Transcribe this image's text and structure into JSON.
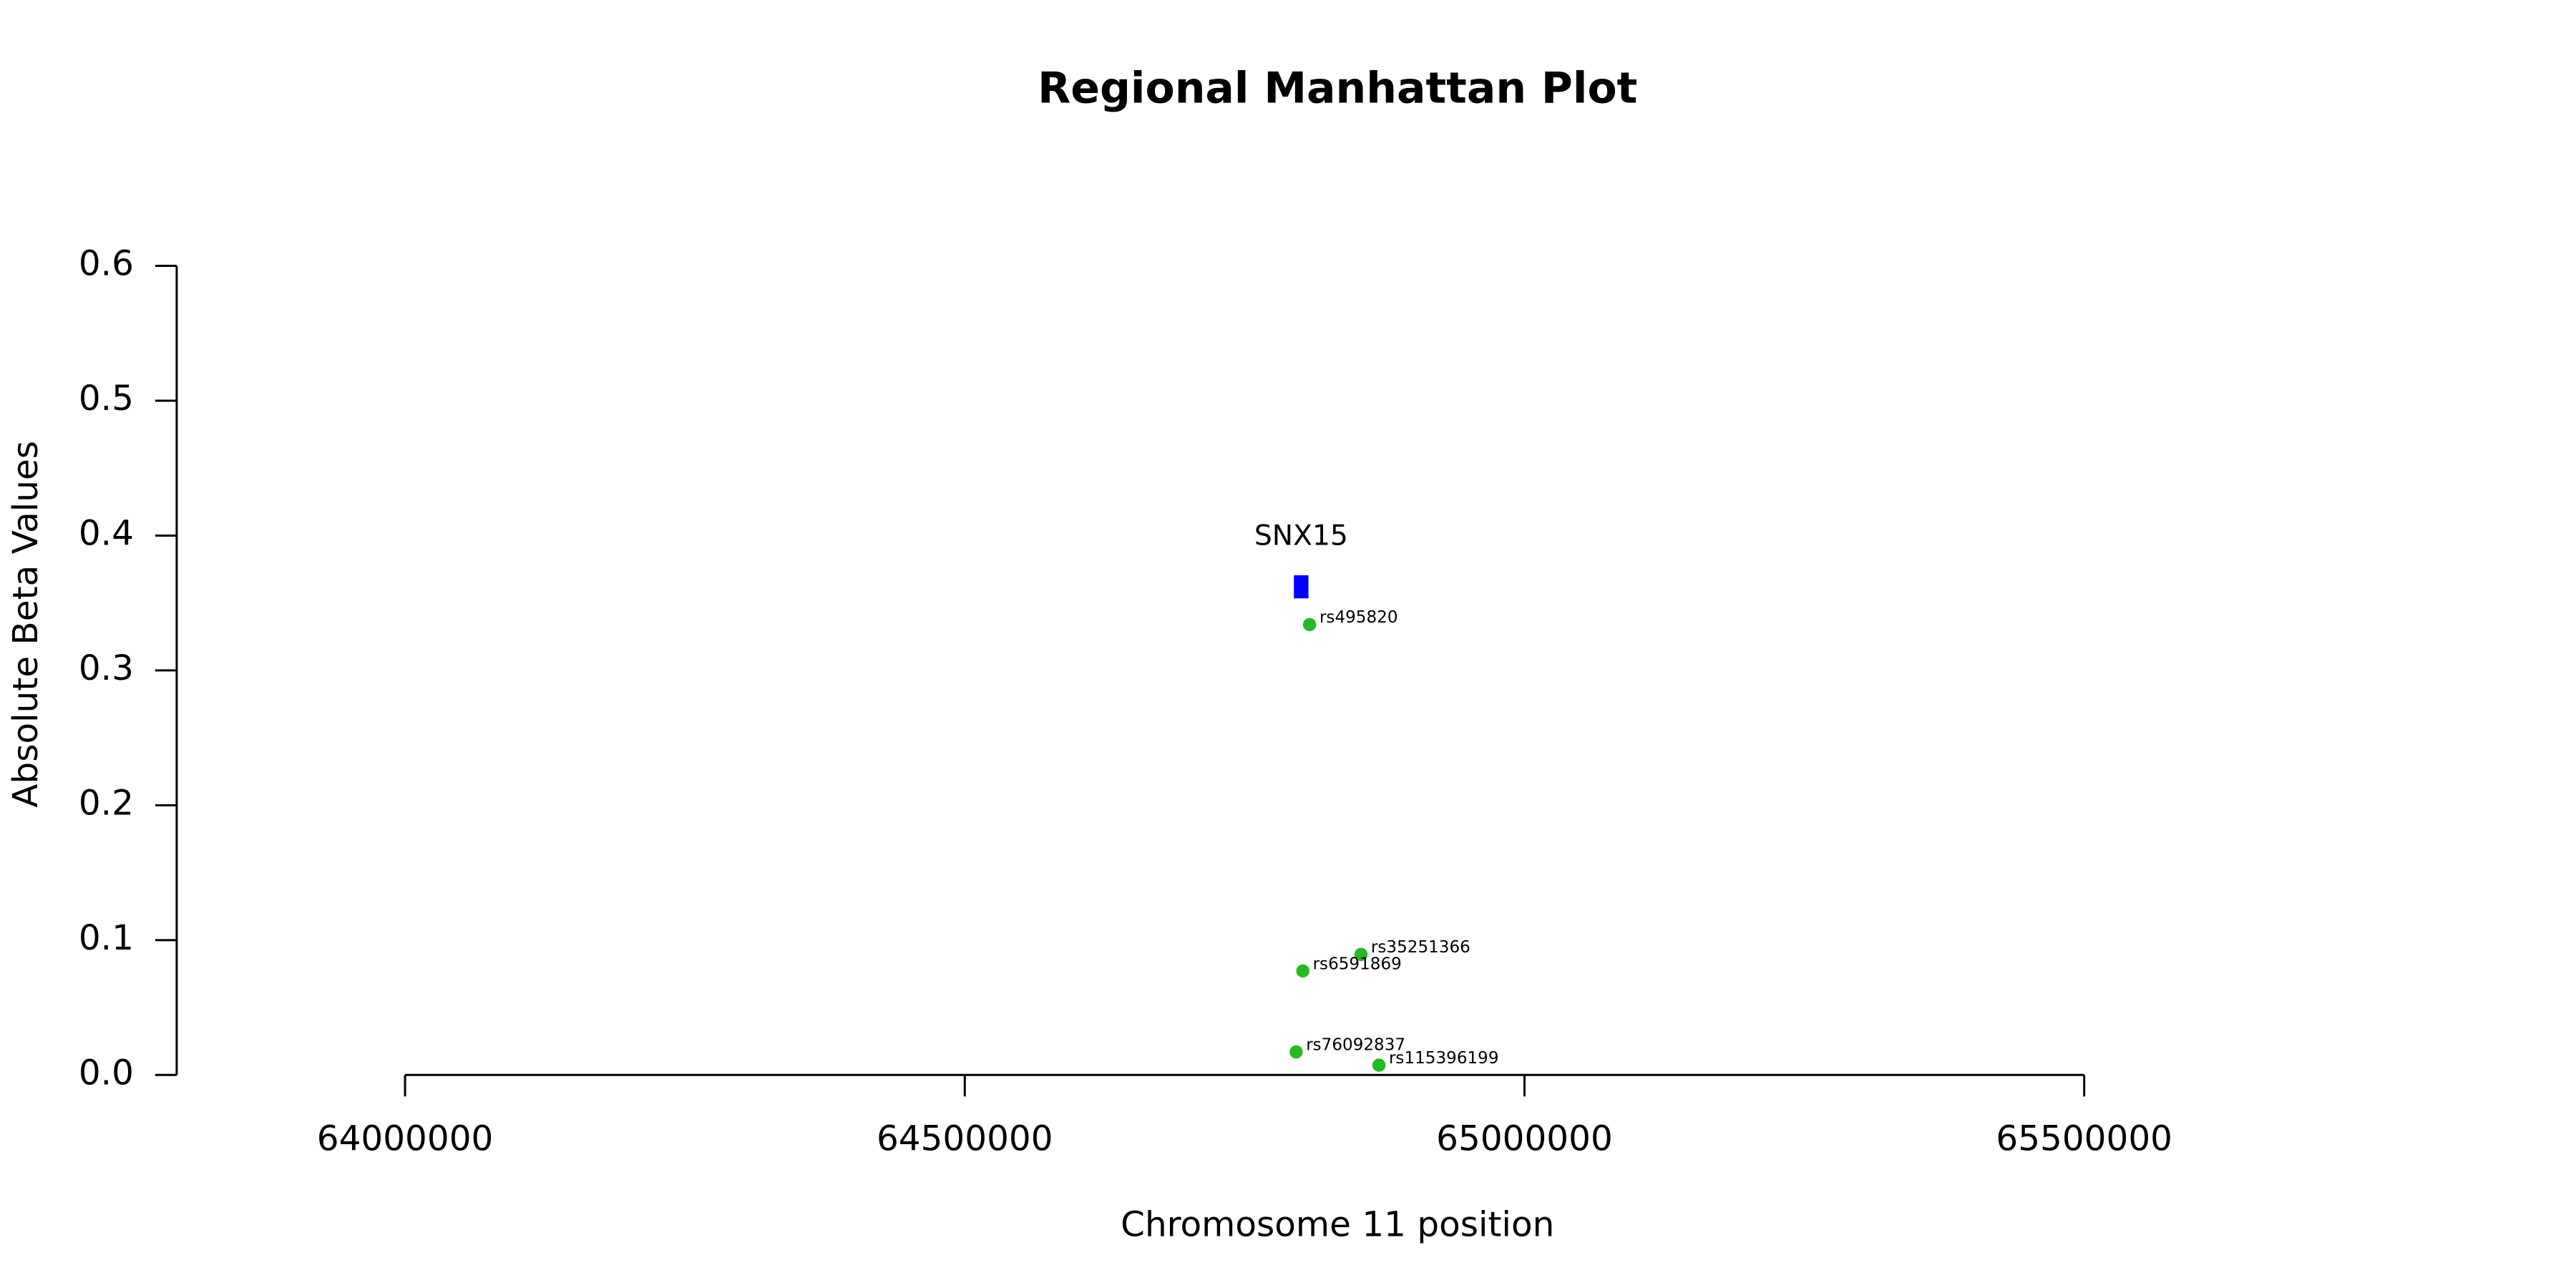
{
  "chart_data": {
    "type": "scatter",
    "title": "Regional Manhattan Plot",
    "x_label": "Chromosome 11 position",
    "y_label": "Absolute Beta Values",
    "xlim": [
      63796000,
      65870000
    ],
    "ylim": [
      0,
      0.6
    ],
    "xticks": [
      64000000,
      64500000,
      65000000,
      65500000
    ],
    "yticks": [
      {
        "value": 0,
        "label": "0.0"
      },
      0.1,
      0.2,
      0.3,
      0.4,
      0.5,
      0.6
    ],
    "series": [
      {
        "color": "#22bb22",
        "labels": [
          "rs495820",
          "rs35251366",
          "rs6591869",
          "rs76092837",
          "rs115396199"
        ],
        "x": [
          64808000,
          64854000,
          64802000,
          64796000,
          64870000
        ],
        "values": [
          0.334,
          0.0894,
          0.0771,
          0.0171,
          0.0073
        ]
      }
    ],
    "genes": [
      {
        "name": "SNX15",
        "start": 64794000,
        "end": 64807000,
        "y": 0.362,
        "color": "#0000ff"
      }
    ]
  }
}
